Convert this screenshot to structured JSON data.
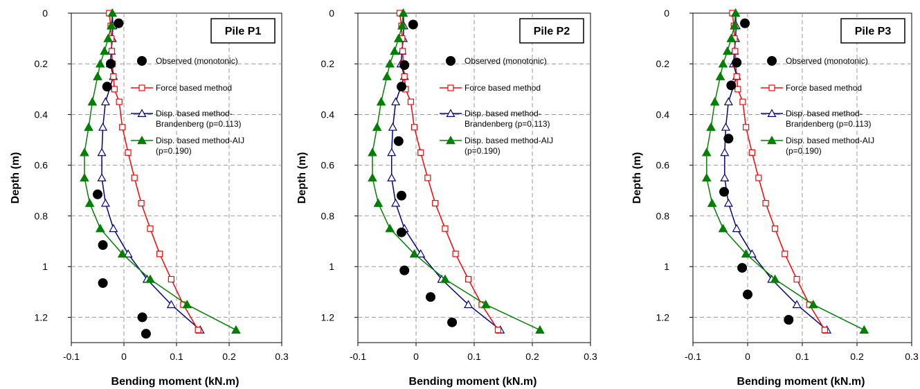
{
  "chart_data": [
    {
      "type": "line",
      "title": "Pile P1",
      "xlabel": "Bending moment (kN.m)",
      "ylabel": "Depth (m)",
      "xlim": [
        -0.1,
        0.3
      ],
      "ylim": [
        0,
        1.3
      ],
      "y_inverted": true,
      "x_ticks": [
        "-0.1",
        "0",
        "0.1",
        "0.2",
        "0.3"
      ],
      "y_ticks": [
        "0",
        "0.2",
        "0.4",
        "0.6",
        "0.8",
        "1",
        "1.2"
      ],
      "grid": "dashed",
      "legend_position": "right, upper-middle",
      "series": [
        {
          "name": "Observed (monotonic)",
          "marker": "filled-circle",
          "line": false,
          "color": "#000000",
          "points": [
            [
              -0.01,
              0.04
            ],
            [
              -0.025,
              0.2
            ],
            [
              -0.032,
              0.29
            ],
            [
              -0.05,
              0.715
            ],
            [
              -0.04,
              0.915
            ],
            [
              -0.04,
              1.065
            ],
            [
              0.035,
              1.2
            ],
            [
              0.042,
              1.265
            ]
          ]
        },
        {
          "name": "Force based method",
          "marker": "open-square",
          "color": "#ff0000",
          "points": [
            [
              -0.028,
              0
            ],
            [
              -0.025,
              0.05
            ],
            [
              -0.024,
              0.1
            ],
            [
              -0.023,
              0.15
            ],
            [
              -0.022,
              0.2
            ],
            [
              -0.02,
              0.25
            ],
            [
              -0.018,
              0.3
            ],
            [
              -0.009,
              0.35
            ],
            [
              -0.003,
              0.45
            ],
            [
              0.008,
              0.55
            ],
            [
              0.02,
              0.65
            ],
            [
              0.033,
              0.75
            ],
            [
              0.05,
              0.85
            ],
            [
              0.068,
              0.95
            ],
            [
              0.09,
              1.05
            ],
            [
              0.113,
              1.15
            ],
            [
              0.141,
              1.25
            ]
          ]
        },
        {
          "name": "Disp. based method-Brandenberg (p=0.113)",
          "marker": "open-triangle",
          "color": "#000080",
          "points": [
            [
              -0.022,
              0
            ],
            [
              -0.021,
              0.05
            ],
            [
              -0.022,
              0.1
            ],
            [
              -0.024,
              0.15
            ],
            [
              -0.026,
              0.2
            ],
            [
              -0.02,
              0.25
            ],
            [
              -0.035,
              0.35
            ],
            [
              -0.04,
              0.45
            ],
            [
              -0.042,
              0.55
            ],
            [
              -0.042,
              0.65
            ],
            [
              -0.035,
              0.75
            ],
            [
              -0.02,
              0.85
            ],
            [
              0.008,
              0.95
            ],
            [
              0.044,
              1.05
            ],
            [
              0.09,
              1.15
            ],
            [
              0.145,
              1.25
            ]
          ]
        },
        {
          "name": "Disp. based method-AIJ (p=0.190)",
          "marker": "filled-triangle",
          "color": "#008000",
          "points": [
            [
              -0.022,
              0
            ],
            [
              -0.024,
              0.05
            ],
            [
              -0.03,
              0.1
            ],
            [
              -0.037,
              0.15
            ],
            [
              -0.045,
              0.2
            ],
            [
              -0.05,
              0.25
            ],
            [
              -0.06,
              0.35
            ],
            [
              -0.067,
              0.45
            ],
            [
              -0.075,
              0.55
            ],
            [
              -0.075,
              0.65
            ],
            [
              -0.065,
              0.75
            ],
            [
              -0.045,
              0.85
            ],
            [
              -0.003,
              0.95
            ],
            [
              0.05,
              1.05
            ],
            [
              0.12,
              1.15
            ],
            [
              0.213,
              1.25
            ]
          ]
        }
      ]
    },
    {
      "type": "line",
      "title": "Pile P2",
      "xlabel": "Bending moment (kN.m)",
      "ylabel": "Depth (m)",
      "xlim": [
        -0.1,
        0.3
      ],
      "ylim": [
        0,
        1.3
      ],
      "y_inverted": true,
      "x_ticks": [
        "-0.1",
        "0",
        "0.1",
        "0.2",
        "0.3"
      ],
      "y_ticks": [
        "0",
        "0.2",
        "0.4",
        "0.6",
        "0.8",
        "1",
        "1.2"
      ],
      "grid": "dashed",
      "legend_position": "right, upper-middle",
      "series": [
        {
          "name": "Observed (monotonic)",
          "marker": "filled-circle",
          "line": false,
          "color": "#000000",
          "points": [
            [
              -0.005,
              0.045
            ],
            [
              -0.02,
              0.205
            ],
            [
              -0.025,
              0.29
            ],
            [
              -0.03,
              0.505
            ],
            [
              -0.025,
              0.72
            ],
            [
              -0.025,
              0.865
            ],
            [
              -0.02,
              1.015
            ],
            [
              0.025,
              1.12
            ],
            [
              0.062,
              1.22
            ]
          ]
        },
        {
          "name": "Force based method",
          "marker": "open-square",
          "color": "#ff0000",
          "points": [
            [
              -0.028,
              0
            ],
            [
              -0.025,
              0.05
            ],
            [
              -0.024,
              0.1
            ],
            [
              -0.023,
              0.15
            ],
            [
              -0.022,
              0.2
            ],
            [
              -0.02,
              0.25
            ],
            [
              -0.018,
              0.3
            ],
            [
              -0.009,
              0.35
            ],
            [
              -0.003,
              0.45
            ],
            [
              0.008,
              0.55
            ],
            [
              0.02,
              0.65
            ],
            [
              0.033,
              0.75
            ],
            [
              0.05,
              0.85
            ],
            [
              0.068,
              0.95
            ],
            [
              0.09,
              1.05
            ],
            [
              0.113,
              1.15
            ],
            [
              0.141,
              1.25
            ]
          ]
        },
        {
          "name": "Disp. based method-Brandenberg (p=0.113)",
          "marker": "open-triangle",
          "color": "#000080",
          "points": [
            [
              -0.022,
              0
            ],
            [
              -0.021,
              0.05
            ],
            [
              -0.022,
              0.1
            ],
            [
              -0.024,
              0.15
            ],
            [
              -0.026,
              0.2
            ],
            [
              -0.02,
              0.25
            ],
            [
              -0.035,
              0.35
            ],
            [
              -0.04,
              0.45
            ],
            [
              -0.042,
              0.55
            ],
            [
              -0.042,
              0.65
            ],
            [
              -0.035,
              0.75
            ],
            [
              -0.02,
              0.85
            ],
            [
              0.008,
              0.95
            ],
            [
              0.044,
              1.05
            ],
            [
              0.09,
              1.15
            ],
            [
              0.145,
              1.25
            ]
          ]
        },
        {
          "name": "Disp. based method-AIJ (p=0.190)",
          "marker": "filled-triangle",
          "color": "#008000",
          "points": [
            [
              -0.022,
              0
            ],
            [
              -0.024,
              0.05
            ],
            [
              -0.03,
              0.1
            ],
            [
              -0.037,
              0.15
            ],
            [
              -0.045,
              0.2
            ],
            [
              -0.05,
              0.25
            ],
            [
              -0.06,
              0.35
            ],
            [
              -0.067,
              0.45
            ],
            [
              -0.075,
              0.55
            ],
            [
              -0.075,
              0.65
            ],
            [
              -0.065,
              0.75
            ],
            [
              -0.045,
              0.85
            ],
            [
              -0.003,
              0.95
            ],
            [
              0.05,
              1.05
            ],
            [
              0.12,
              1.15
            ],
            [
              0.213,
              1.25
            ]
          ]
        }
      ]
    },
    {
      "type": "line",
      "title": "Pile P3",
      "xlabel": "Bending moment (kN.m)",
      "ylabel": "Depth (m)",
      "xlim": [
        -0.1,
        0.3
      ],
      "ylim": [
        0,
        1.3
      ],
      "y_inverted": true,
      "x_ticks": [
        "-0.1",
        "0",
        "0.1",
        "0.2",
        "0.3"
      ],
      "y_ticks": [
        "0",
        "0.2",
        "0.4",
        "0.6",
        "0.8",
        "1",
        "1.2"
      ],
      "grid": "dashed",
      "legend_position": "right, upper-middle",
      "series": [
        {
          "name": "Observed (monotonic)",
          "marker": "filled-circle",
          "line": false,
          "color": "#000000",
          "points": [
            [
              -0.005,
              0.04
            ],
            [
              -0.02,
              0.195
            ],
            [
              -0.03,
              0.285
            ],
            [
              -0.035,
              0.495
            ],
            [
              -0.043,
              0.705
            ],
            [
              -0.01,
              1.005
            ],
            [
              0,
              1.11
            ],
            [
              0.075,
              1.21
            ]
          ]
        },
        {
          "name": "Force based method",
          "marker": "open-square",
          "color": "#ff0000",
          "points": [
            [
              -0.028,
              0
            ],
            [
              -0.025,
              0.05
            ],
            [
              -0.024,
              0.1
            ],
            [
              -0.023,
              0.15
            ],
            [
              -0.022,
              0.2
            ],
            [
              -0.02,
              0.25
            ],
            [
              -0.018,
              0.3
            ],
            [
              -0.009,
              0.35
            ],
            [
              -0.003,
              0.45
            ],
            [
              0.008,
              0.55
            ],
            [
              0.02,
              0.65
            ],
            [
              0.033,
              0.75
            ],
            [
              0.05,
              0.85
            ],
            [
              0.068,
              0.95
            ],
            [
              0.09,
              1.05
            ],
            [
              0.113,
              1.15
            ],
            [
              0.141,
              1.25
            ]
          ]
        },
        {
          "name": "Disp. based method-Brandenberg (p=0.113)",
          "marker": "open-triangle",
          "color": "#000080",
          "points": [
            [
              -0.022,
              0
            ],
            [
              -0.021,
              0.05
            ],
            [
              -0.022,
              0.1
            ],
            [
              -0.024,
              0.15
            ],
            [
              -0.026,
              0.2
            ],
            [
              -0.02,
              0.25
            ],
            [
              -0.035,
              0.35
            ],
            [
              -0.04,
              0.45
            ],
            [
              -0.042,
              0.55
            ],
            [
              -0.042,
              0.65
            ],
            [
              -0.035,
              0.75
            ],
            [
              -0.02,
              0.85
            ],
            [
              0.008,
              0.95
            ],
            [
              0.044,
              1.05
            ],
            [
              0.09,
              1.15
            ],
            [
              0.145,
              1.25
            ]
          ]
        },
        {
          "name": "Disp. based method-AIJ (p=0.190)",
          "marker": "filled-triangle",
          "color": "#008000",
          "points": [
            [
              -0.022,
              0
            ],
            [
              -0.024,
              0.05
            ],
            [
              -0.03,
              0.1
            ],
            [
              -0.037,
              0.15
            ],
            [
              -0.045,
              0.2
            ],
            [
              -0.05,
              0.25
            ],
            [
              -0.06,
              0.35
            ],
            [
              -0.067,
              0.45
            ],
            [
              -0.075,
              0.55
            ],
            [
              -0.075,
              0.65
            ],
            [
              -0.065,
              0.75
            ],
            [
              -0.045,
              0.85
            ],
            [
              -0.003,
              0.95
            ],
            [
              0.05,
              1.05
            ],
            [
              0.12,
              1.15
            ],
            [
              0.213,
              1.25
            ]
          ]
        }
      ]
    }
  ]
}
